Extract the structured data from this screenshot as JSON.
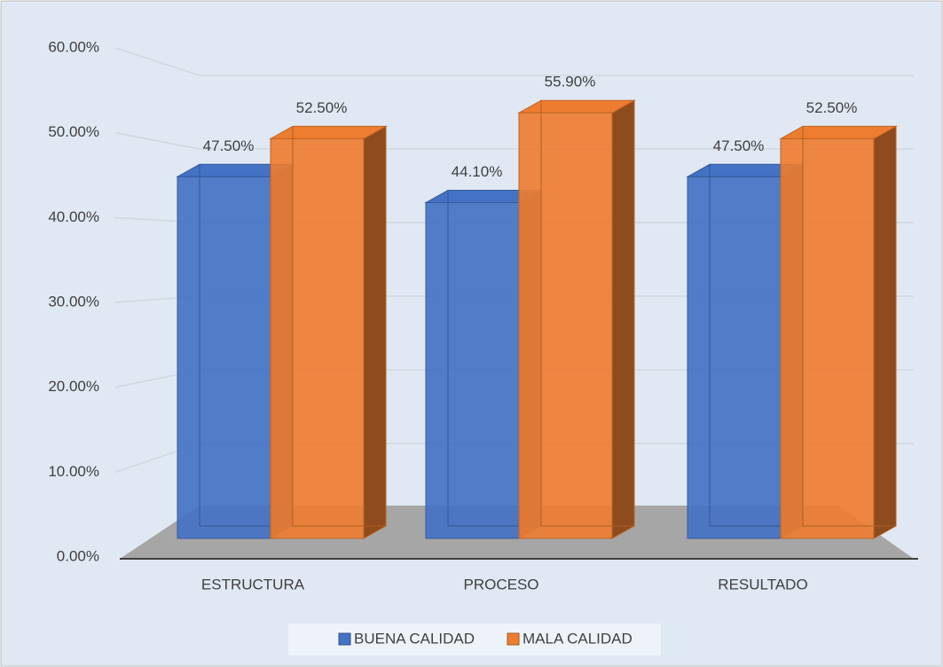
{
  "chart_data": {
    "type": "bar3d",
    "categories": [
      "ESTRUCTURA",
      "PROCESO",
      "RESULTADO"
    ],
    "series": [
      {
        "name": "BUENA CALIDAD",
        "color": "#4472c4",
        "values": [
          47.5,
          44.1,
          47.5
        ],
        "value_labels": [
          "47.50%",
          "44.10%",
          "47.50%"
        ]
      },
      {
        "name": "MALA CALIDAD",
        "color": "#ed7d31",
        "values": [
          52.5,
          55.9,
          52.5
        ],
        "value_labels": [
          "52.50%",
          "55.90%",
          "52.50%"
        ]
      }
    ],
    "ylim": [
      0,
      60
    ],
    "yticks": [
      {
        "value": 0,
        "label": "0.00%"
      },
      {
        "value": 10,
        "label": "10.00%"
      },
      {
        "value": 20,
        "label": "20.00%"
      },
      {
        "value": 30,
        "label": "30.00%"
      },
      {
        "value": 40,
        "label": "40.00%"
      },
      {
        "value": 50,
        "label": "50.00%"
      },
      {
        "value": 60,
        "label": "60.00%"
      }
    ],
    "grid": true,
    "legend": "bottom"
  }
}
